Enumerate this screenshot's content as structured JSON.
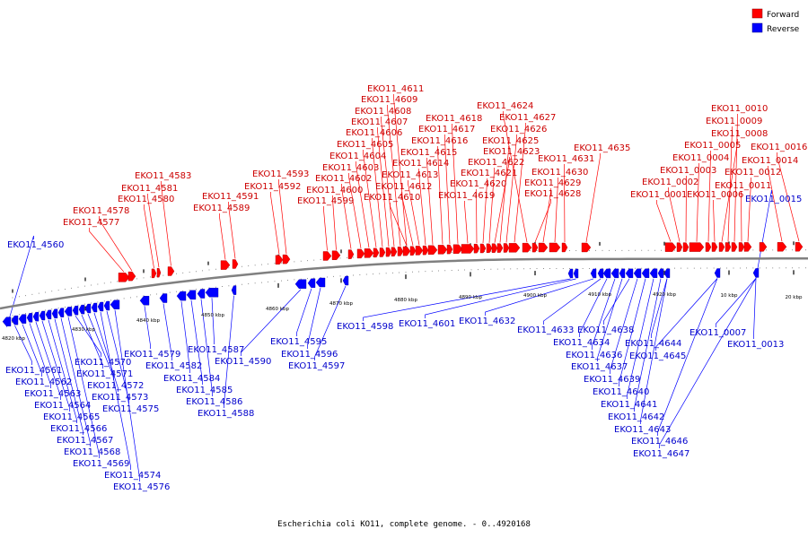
{
  "caption": "Escherichia coli KO11, complete genome. - 0..4920168",
  "legend": [
    {
      "label": "Forward",
      "color": "#ff0000"
    },
    {
      "label": "Reverse",
      "color": "#0000ff"
    }
  ],
  "colors": {
    "forward": "#ff0000",
    "reverse": "#0000ff",
    "forward_text": "#cc0000",
    "reverse_text": "#0000cc",
    "backbone": "#808080"
  },
  "scale_labels": [
    "4820 kbp",
    "4830 kbp",
    "4840 kbp",
    "4850 kbp",
    "4860 kbp",
    "4870 kbp",
    "4880 kbp",
    "4890 kbp",
    "4900 kbp",
    "4910 kbp",
    "4920 kbp",
    "10 kbp",
    "20 kbp"
  ],
  "forward_genes": [
    "EKO11_4577",
    "EKO11_4578",
    "EKO11_4580",
    "EKO11_4581",
    "EKO11_4583",
    "EKO11_4589",
    "EKO11_4591",
    "EKO11_4592",
    "EKO11_4593",
    "EKO11_4599",
    "EKO11_4600",
    "EKO11_4602",
    "EKO11_4603",
    "EKO11_4604",
    "EKO11_4605",
    "EKO11_4606",
    "EKO11_4607",
    "EKO11_4608",
    "EKO11_4609",
    "EKO11_4611",
    "EKO11_4610",
    "EKO11_4612",
    "EKO11_4613",
    "EKO11_4614",
    "EKO11_4615",
    "EKO11_4616",
    "EKO11_4617",
    "EKO11_4618",
    "EKO11_4619",
    "EKO11_4620",
    "EKO11_4621",
    "EKO11_4622",
    "EKO11_4623",
    "EKO11_4625",
    "EKO11_4626",
    "EKO11_4627",
    "EKO11_4624",
    "EKO11_4628",
    "EKO11_4629",
    "EKO11_4630",
    "EKO11_4631",
    "EKO11_4635",
    "EKO11_0001",
    "EKO11_0002",
    "EKO11_0003",
    "EKO11_0004",
    "EKO11_0005",
    "EKO11_0006",
    "EKO11_0008",
    "EKO11_0009",
    "EKO11_0010",
    "EKO11_0011",
    "EKO11_0012",
    "EKO11_0014",
    "EKO11_0016"
  ],
  "reverse_genes": [
    "EKO11_4560",
    "EKO11_4561",
    "EKO11_4562",
    "EKO11_4563",
    "EKO11_4564",
    "EKO11_4565",
    "EKO11_4566",
    "EKO11_4567",
    "EKO11_4568",
    "EKO11_4569",
    "EKO11_4570",
    "EKO11_4571",
    "EKO11_4572",
    "EKO11_4573",
    "EKO11_4574",
    "EKO11_4575",
    "EKO11_4576",
    "EKO11_4579",
    "EKO11_4582",
    "EKO11_4584",
    "EKO11_4585",
    "EKO11_4586",
    "EKO11_4587",
    "EKO11_4588",
    "EKO11_4590",
    "EKO11_4595",
    "EKO11_4596",
    "EKO11_4597",
    "EKO11_4598",
    "EKO11_4601",
    "EKO11_4632",
    "EKO11_4633",
    "EKO11_4634",
    "EKO11_4636",
    "EKO11_4637",
    "EKO11_4638",
    "EKO11_4639",
    "EKO11_4640",
    "EKO11_4641",
    "EKO11_4642",
    "EKO11_4643",
    "EKO11_4644",
    "EKO11_4645",
    "EKO11_4646",
    "EKO11_4647",
    "EKO11_0007",
    "EKO11_0013",
    "EKO11_0015"
  ]
}
